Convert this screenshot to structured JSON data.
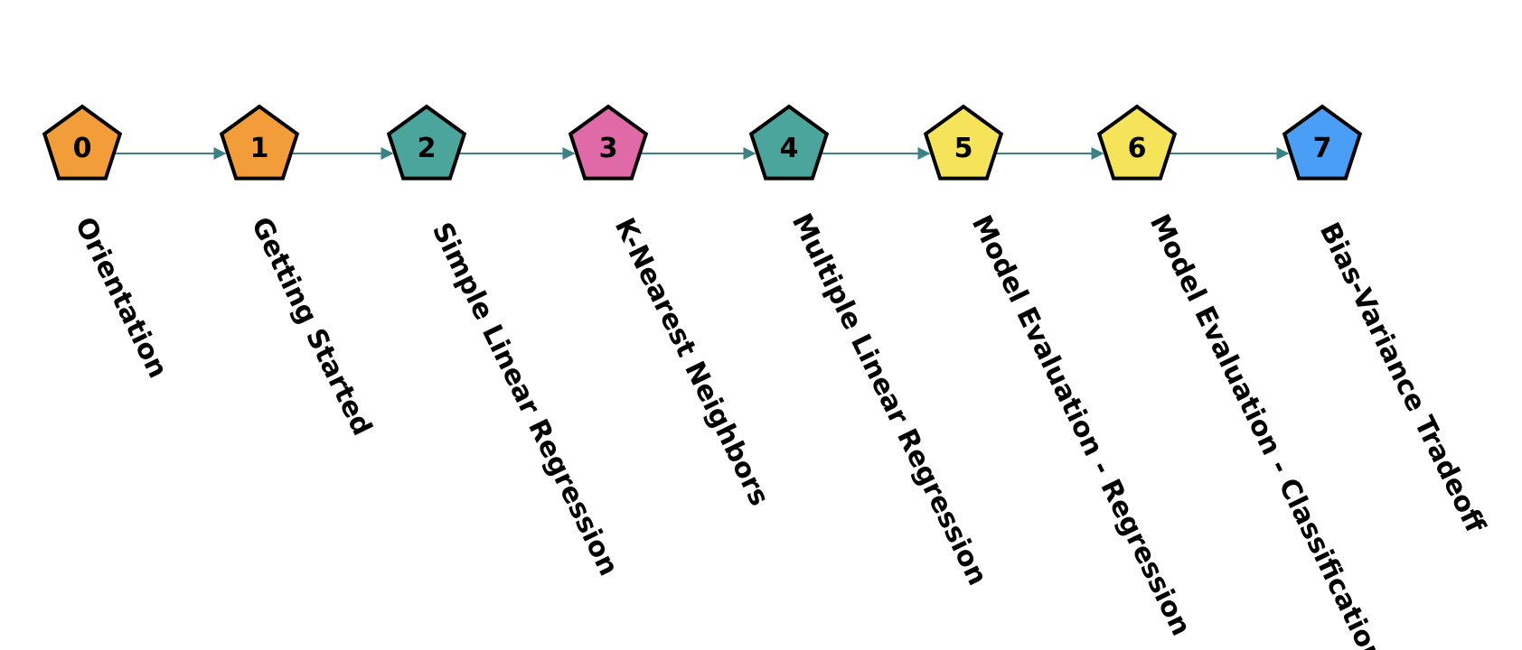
{
  "edge_color": "#3d8282",
  "outline_color": "#000000",
  "nodes": [
    {
      "number": "0",
      "label": "Orientation",
      "color": "#f29c3a"
    },
    {
      "number": "1",
      "label": "Getting Started",
      "color": "#f29c3a"
    },
    {
      "number": "2",
      "label": "Simple Linear Regression",
      "color": "#4ca59c"
    },
    {
      "number": "3",
      "label": "K-Nearest Neighbors",
      "color": "#e06aa8"
    },
    {
      "number": "4",
      "label": "Multiple Linear Regression",
      "color": "#4ca59c"
    },
    {
      "number": "5",
      "label": "Model Evaluation - Regression",
      "color": "#f5e35a"
    },
    {
      "number": "6",
      "label": "Model Evaluation - Classification",
      "color": "#f5e35a"
    },
    {
      "number": "7",
      "label": "Bias-Variance Tradeoff",
      "color": "#4a9ef5"
    }
  ]
}
